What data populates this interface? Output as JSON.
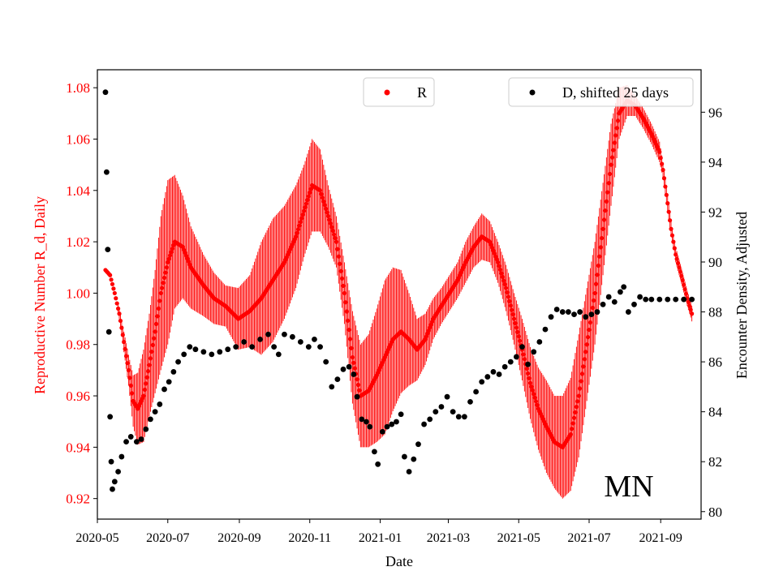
{
  "chart_data": {
    "type": "scatter",
    "title": "",
    "annotation": "MN",
    "xlabel": "Date",
    "ylabel_left": "Reproductive Number R_d, Daily",
    "ylabel_right": "Encounter Density, Adjusted",
    "xlim": [
      "2020-05-01",
      "2021-10-06"
    ],
    "ylim_left": [
      0.912,
      1.087
    ],
    "ylim_right": [
      79.7,
      97.7
    ],
    "x_ticks": [
      "2020-05",
      "2020-07",
      "2020-09",
      "2020-11",
      "2021-01",
      "2021-03",
      "2021-05",
      "2021-07",
      "2021-09"
    ],
    "y_ticks_left": [
      "0.92",
      "0.94",
      "0.96",
      "0.98",
      "1.00",
      "1.02",
      "1.04",
      "1.06",
      "1.08"
    ],
    "y_ticks_right": [
      "80",
      "82",
      "84",
      "86",
      "88",
      "90",
      "92",
      "94",
      "96"
    ],
    "grid": false,
    "colors": {
      "R": "#ff0000",
      "D": "#000000",
      "left_axis": "#ff0000",
      "right_axis": "#000000"
    },
    "legend_R": {
      "label": "R",
      "placement": "top-center"
    },
    "legend_D": {
      "label": "D, shifted 25 days",
      "placement": "top-right"
    },
    "series": [
      {
        "name": "R",
        "axis": "left",
        "marker": "dot-with-daily-error-bars",
        "points": [
          [
            "2020-05-08",
            1.009,
            0.0
          ],
          [
            "2020-05-12",
            1.007,
            0.0
          ],
          [
            "2020-05-16",
            1.0,
            0.001
          ],
          [
            "2020-05-20",
            0.992,
            0.002
          ],
          [
            "2020-05-24",
            0.981,
            0.004
          ],
          [
            "2020-05-28",
            0.97,
            0.006
          ],
          [
            "2020-06-01",
            0.958,
            0.01
          ],
          [
            "2020-06-05",
            0.955,
            0.014
          ],
          [
            "2020-06-10",
            0.96,
            0.018
          ],
          [
            "2020-06-15",
            0.972,
            0.02
          ],
          [
            "2020-06-20",
            0.985,
            0.024
          ],
          [
            "2020-06-25",
            1.0,
            0.03
          ],
          [
            "2020-07-01",
            1.012,
            0.032
          ],
          [
            "2020-07-07",
            1.02,
            0.026
          ],
          [
            "2020-07-14",
            1.018,
            0.02
          ],
          [
            "2020-07-21",
            1.01,
            0.016
          ],
          [
            "2020-08-01",
            1.003,
            0.012
          ],
          [
            "2020-08-10",
            0.998,
            0.01
          ],
          [
            "2020-08-20",
            0.995,
            0.008
          ],
          [
            "2020-08-31",
            0.99,
            0.012
          ],
          [
            "2020-09-10",
            0.993,
            0.014
          ],
          [
            "2020-09-20",
            0.998,
            0.022
          ],
          [
            "2020-09-30",
            1.005,
            0.024
          ],
          [
            "2020-10-10",
            1.012,
            0.022
          ],
          [
            "2020-10-20",
            1.022,
            0.02
          ],
          [
            "2020-10-27",
            1.032,
            0.018
          ],
          [
            "2020-11-03",
            1.042,
            0.018
          ],
          [
            "2020-11-10",
            1.04,
            0.016
          ],
          [
            "2020-11-17",
            1.03,
            0.012
          ],
          [
            "2020-11-24",
            1.02,
            0.01
          ],
          [
            "2020-12-01",
            1.0,
            0.012
          ],
          [
            "2020-12-08",
            0.975,
            0.018
          ],
          [
            "2020-12-15",
            0.96,
            0.02
          ],
          [
            "2020-12-22",
            0.962,
            0.022
          ],
          [
            "2020-12-29",
            0.968,
            0.026
          ],
          [
            "2021-01-05",
            0.975,
            0.03
          ],
          [
            "2021-01-12",
            0.982,
            0.028
          ],
          [
            "2021-01-19",
            0.985,
            0.024
          ],
          [
            "2021-01-26",
            0.982,
            0.018
          ],
          [
            "2021-02-02",
            0.978,
            0.012
          ],
          [
            "2021-02-09",
            0.982,
            0.01
          ],
          [
            "2021-02-16",
            0.99,
            0.008
          ],
          [
            "2021-02-23",
            0.995,
            0.007
          ],
          [
            "2021-03-02",
            1.0,
            0.007
          ],
          [
            "2021-03-09",
            1.005,
            0.007
          ],
          [
            "2021-03-16",
            1.012,
            0.008
          ],
          [
            "2021-03-23",
            1.018,
            0.008
          ],
          [
            "2021-03-30",
            1.022,
            0.009
          ],
          [
            "2021-04-06",
            1.02,
            0.008
          ],
          [
            "2021-04-13",
            1.012,
            0.008
          ],
          [
            "2021-04-20",
            1.002,
            0.009
          ],
          [
            "2021-04-27",
            0.99,
            0.01
          ],
          [
            "2021-05-04",
            0.978,
            0.012
          ],
          [
            "2021-05-11",
            0.965,
            0.014
          ],
          [
            "2021-05-18",
            0.955,
            0.016
          ],
          [
            "2021-05-25",
            0.948,
            0.018
          ],
          [
            "2021-06-01",
            0.942,
            0.018
          ],
          [
            "2021-06-08",
            0.94,
            0.02
          ],
          [
            "2021-06-15",
            0.945,
            0.022
          ],
          [
            "2021-06-22",
            0.96,
            0.024
          ],
          [
            "2021-06-29",
            0.98,
            0.022
          ],
          [
            "2021-07-06",
            1.0,
            0.02
          ],
          [
            "2021-07-13",
            1.025,
            0.018
          ],
          [
            "2021-07-20",
            1.05,
            0.016
          ],
          [
            "2021-07-27",
            1.07,
            0.01
          ],
          [
            "2021-08-03",
            1.075,
            0.006
          ],
          [
            "2021-08-10",
            1.073,
            0.004
          ],
          [
            "2021-08-17",
            1.068,
            0.004
          ],
          [
            "2021-08-24",
            1.062,
            0.004
          ],
          [
            "2021-08-31",
            1.055,
            0.004
          ],
          [
            "2021-09-03",
            1.048,
            0.003
          ],
          [
            "2021-09-07",
            1.035,
            0.003
          ],
          [
            "2021-09-10",
            1.025,
            0.003
          ],
          [
            "2021-09-14",
            1.015,
            0.003
          ],
          [
            "2021-09-17",
            1.01,
            0.003
          ],
          [
            "2021-09-20",
            1.005,
            0.003
          ],
          [
            "2021-09-24",
            0.998,
            0.003
          ],
          [
            "2021-09-28",
            0.992,
            0.003
          ]
        ]
      },
      {
        "name": "D, shifted 25 days",
        "axis": "right",
        "marker": "dot",
        "points": [
          [
            "2020-05-08",
            96.8
          ],
          [
            "2020-05-09",
            93.6
          ],
          [
            "2020-05-10",
            90.5
          ],
          [
            "2020-05-11",
            87.2
          ],
          [
            "2020-05-12",
            83.8
          ],
          [
            "2020-05-13",
            82.0
          ],
          [
            "2020-05-14",
            80.9
          ],
          [
            "2020-05-16",
            81.2
          ],
          [
            "2020-05-19",
            81.6
          ],
          [
            "2020-05-22",
            82.2
          ],
          [
            "2020-05-26",
            82.8
          ],
          [
            "2020-05-30",
            83.0
          ],
          [
            "2020-06-04",
            82.8
          ],
          [
            "2020-06-08",
            82.9
          ],
          [
            "2020-06-12",
            83.3
          ],
          [
            "2020-06-16",
            83.7
          ],
          [
            "2020-06-20",
            84.0
          ],
          [
            "2020-06-24",
            84.3
          ],
          [
            "2020-06-28",
            84.9
          ],
          [
            "2020-07-02",
            85.2
          ],
          [
            "2020-07-06",
            85.6
          ],
          [
            "2020-07-10",
            86.0
          ],
          [
            "2020-07-15",
            86.3
          ],
          [
            "2020-07-20",
            86.6
          ],
          [
            "2020-07-25",
            86.5
          ],
          [
            "2020-08-01",
            86.4
          ],
          [
            "2020-08-08",
            86.3
          ],
          [
            "2020-08-15",
            86.4
          ],
          [
            "2020-08-22",
            86.5
          ],
          [
            "2020-08-29",
            86.6
          ],
          [
            "2020-09-05",
            86.8
          ],
          [
            "2020-09-12",
            86.6
          ],
          [
            "2020-09-19",
            86.9
          ],
          [
            "2020-09-26",
            87.1
          ],
          [
            "2020-10-01",
            86.6
          ],
          [
            "2020-10-05",
            86.3
          ],
          [
            "2020-10-10",
            87.1
          ],
          [
            "2020-10-17",
            87.0
          ],
          [
            "2020-10-24",
            86.8
          ],
          [
            "2020-10-31",
            86.6
          ],
          [
            "2020-11-05",
            86.9
          ],
          [
            "2020-11-10",
            86.6
          ],
          [
            "2020-11-15",
            86.0
          ],
          [
            "2020-11-20",
            85.0
          ],
          [
            "2020-11-25",
            85.3
          ],
          [
            "2020-11-30",
            85.7
          ],
          [
            "2020-12-05",
            85.8
          ],
          [
            "2020-12-09",
            85.5
          ],
          [
            "2020-12-12",
            84.6
          ],
          [
            "2020-12-16",
            83.7
          ],
          [
            "2020-12-20",
            83.6
          ],
          [
            "2020-12-23",
            83.4
          ],
          [
            "2020-12-27",
            82.4
          ],
          [
            "2020-12-30",
            81.9
          ],
          [
            "2021-01-03",
            83.2
          ],
          [
            "2021-01-07",
            83.4
          ],
          [
            "2021-01-11",
            83.5
          ],
          [
            "2021-01-15",
            83.6
          ],
          [
            "2021-01-19",
            83.9
          ],
          [
            "2021-01-22",
            82.2
          ],
          [
            "2021-01-26",
            81.6
          ],
          [
            "2021-01-30",
            82.1
          ],
          [
            "2021-02-03",
            82.7
          ],
          [
            "2021-02-08",
            83.5
          ],
          [
            "2021-02-13",
            83.7
          ],
          [
            "2021-02-18",
            84.0
          ],
          [
            "2021-02-23",
            84.2
          ],
          [
            "2021-02-28",
            84.6
          ],
          [
            "2021-03-05",
            84.0
          ],
          [
            "2021-03-10",
            83.8
          ],
          [
            "2021-03-15",
            83.8
          ],
          [
            "2021-03-20",
            84.4
          ],
          [
            "2021-03-25",
            84.8
          ],
          [
            "2021-03-30",
            85.2
          ],
          [
            "2021-04-04",
            85.4
          ],
          [
            "2021-04-09",
            85.6
          ],
          [
            "2021-04-14",
            85.5
          ],
          [
            "2021-04-19",
            85.8
          ],
          [
            "2021-04-24",
            86.0
          ],
          [
            "2021-04-29",
            86.2
          ],
          [
            "2021-05-04",
            86.6
          ],
          [
            "2021-05-09",
            85.9
          ],
          [
            "2021-05-14",
            86.4
          ],
          [
            "2021-05-19",
            86.8
          ],
          [
            "2021-05-24",
            87.3
          ],
          [
            "2021-05-29",
            87.8
          ],
          [
            "2021-06-03",
            88.1
          ],
          [
            "2021-06-08",
            88.0
          ],
          [
            "2021-06-13",
            88.0
          ],
          [
            "2021-06-18",
            87.9
          ],
          [
            "2021-06-23",
            88.0
          ],
          [
            "2021-06-28",
            87.8
          ],
          [
            "2021-07-03",
            87.9
          ],
          [
            "2021-07-08",
            88.0
          ],
          [
            "2021-07-13",
            88.3
          ],
          [
            "2021-07-18",
            88.6
          ],
          [
            "2021-07-23",
            88.4
          ],
          [
            "2021-07-28",
            88.8
          ],
          [
            "2021-07-31",
            89.0
          ],
          [
            "2021-08-04",
            88.0
          ],
          [
            "2021-08-09",
            88.3
          ],
          [
            "2021-08-14",
            88.6
          ],
          [
            "2021-08-19",
            88.5
          ],
          [
            "2021-08-24",
            88.5
          ],
          [
            "2021-08-31",
            88.5
          ],
          [
            "2021-09-07",
            88.5
          ],
          [
            "2021-09-14",
            88.5
          ],
          [
            "2021-09-21",
            88.5
          ],
          [
            "2021-09-28",
            88.5
          ]
        ]
      }
    ]
  }
}
